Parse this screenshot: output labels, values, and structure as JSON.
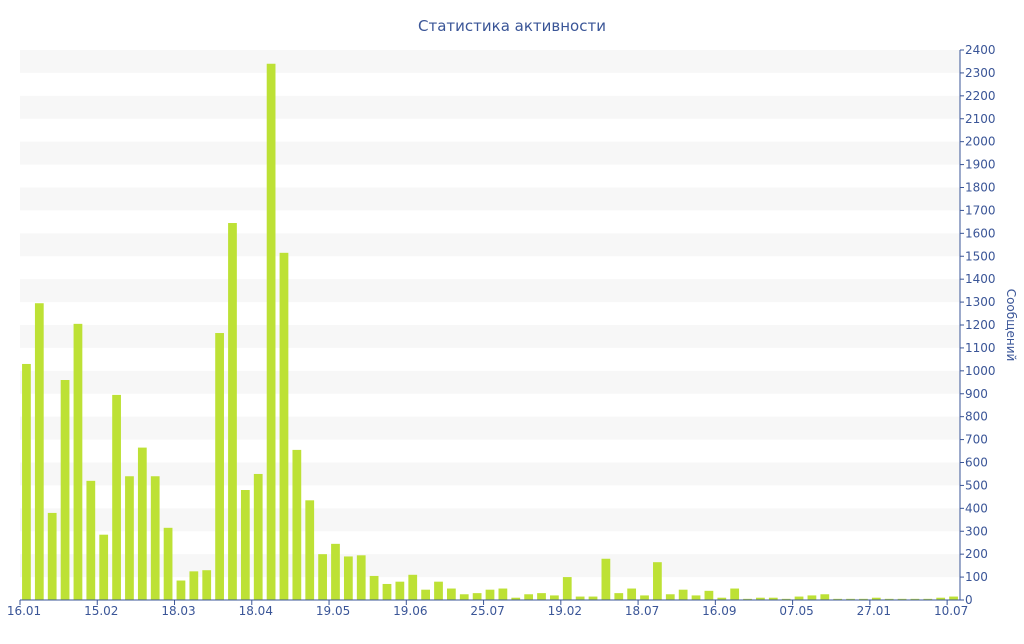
{
  "chart_data": {
    "type": "bar",
    "title": "Статистика активности",
    "ylabel": "Сообщений",
    "xlabel": "",
    "ylim": [
      0,
      2400
    ],
    "y_ticks": [
      0,
      100,
      200,
      300,
      400,
      500,
      600,
      700,
      800,
      900,
      1000,
      1100,
      1200,
      1300,
      1400,
      1500,
      1600,
      1700,
      1800,
      1900,
      2000,
      2100,
      2200,
      2300,
      2400
    ],
    "y_axis_side": "right",
    "grid": "alternating horizontal bands",
    "bar_color": "#bde135",
    "band_color": "#f7f7f7",
    "text_color": "#3a5597",
    "x_tick_labels": [
      {
        "label": "16.01",
        "index": 0
      },
      {
        "label": "15.02",
        "index": 6
      },
      {
        "label": "18.03",
        "index": 12
      },
      {
        "label": "18.04",
        "index": 18
      },
      {
        "label": "19.05",
        "index": 24
      },
      {
        "label": "19.06",
        "index": 30
      },
      {
        "label": "25.07",
        "index": 36
      },
      {
        "label": "19.02",
        "index": 42
      },
      {
        "label": "18.07",
        "index": 48
      },
      {
        "label": "16.09",
        "index": 54
      },
      {
        "label": "07.05",
        "index": 60
      },
      {
        "label": "27.01",
        "index": 66
      },
      {
        "label": "10.07",
        "index": 72
      }
    ],
    "values": [
      1030,
      1295,
      380,
      960,
      1205,
      520,
      285,
      895,
      540,
      665,
      540,
      315,
      85,
      125,
      130,
      1165,
      1645,
      480,
      550,
      2340,
      1515,
      655,
      435,
      200,
      245,
      190,
      195,
      105,
      70,
      80,
      110,
      45,
      80,
      50,
      25,
      30,
      45,
      50,
      10,
      25,
      30,
      20,
      100,
      15,
      15,
      180,
      30,
      50,
      20,
      165,
      25,
      45,
      20,
      40,
      10,
      50,
      5,
      10,
      10,
      5,
      15,
      20,
      25,
      5,
      5,
      5,
      10,
      5,
      5,
      5,
      5,
      10,
      15
    ]
  }
}
